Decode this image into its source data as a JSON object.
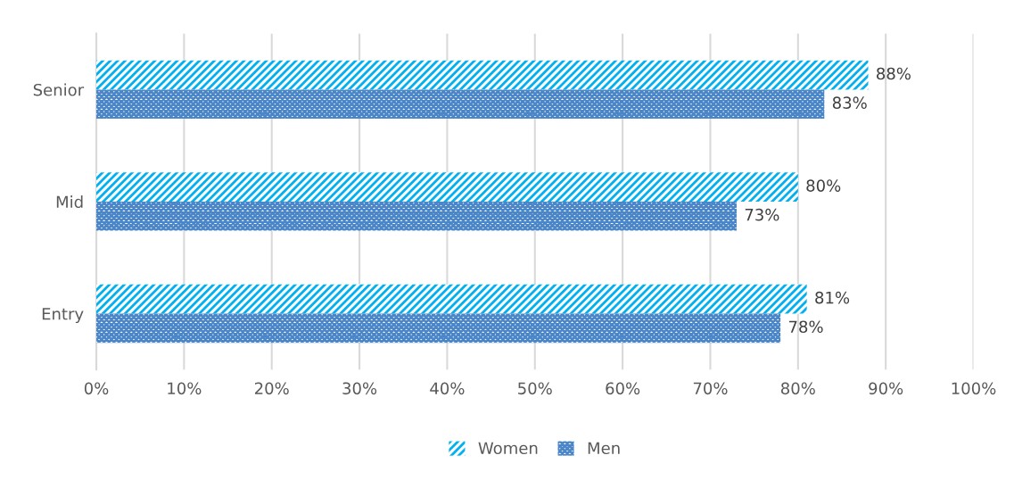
{
  "chart_data": {
    "type": "bar",
    "orientation": "horizontal",
    "categories": [
      "Senior",
      "Mid",
      "Entry"
    ],
    "series": [
      {
        "name": "Women",
        "color": "#00b0f0",
        "values": [
          88,
          80,
          81
        ],
        "value_labels": [
          "88%",
          "80%",
          "81%"
        ]
      },
      {
        "name": "Men",
        "color": "#4a86c8",
        "values": [
          83,
          73,
          78
        ],
        "value_labels": [
          "83%",
          "73%",
          "78%"
        ]
      }
    ],
    "xlim": [
      0,
      100
    ],
    "xticks": [
      {
        "value": 0,
        "label": "0%"
      },
      {
        "value": 10,
        "label": "10%"
      },
      {
        "value": 20,
        "label": "20%"
      },
      {
        "value": 30,
        "label": "30%"
      },
      {
        "value": 40,
        "label": "40%"
      },
      {
        "value": 50,
        "label": "50%"
      },
      {
        "value": 60,
        "label": "60%"
      },
      {
        "value": 70,
        "label": "70%"
      },
      {
        "value": 80,
        "label": "80%"
      },
      {
        "value": 90,
        "label": "90%"
      },
      {
        "value": 100,
        "label": "100%"
      }
    ],
    "grid": "x",
    "legend": "bottom"
  }
}
